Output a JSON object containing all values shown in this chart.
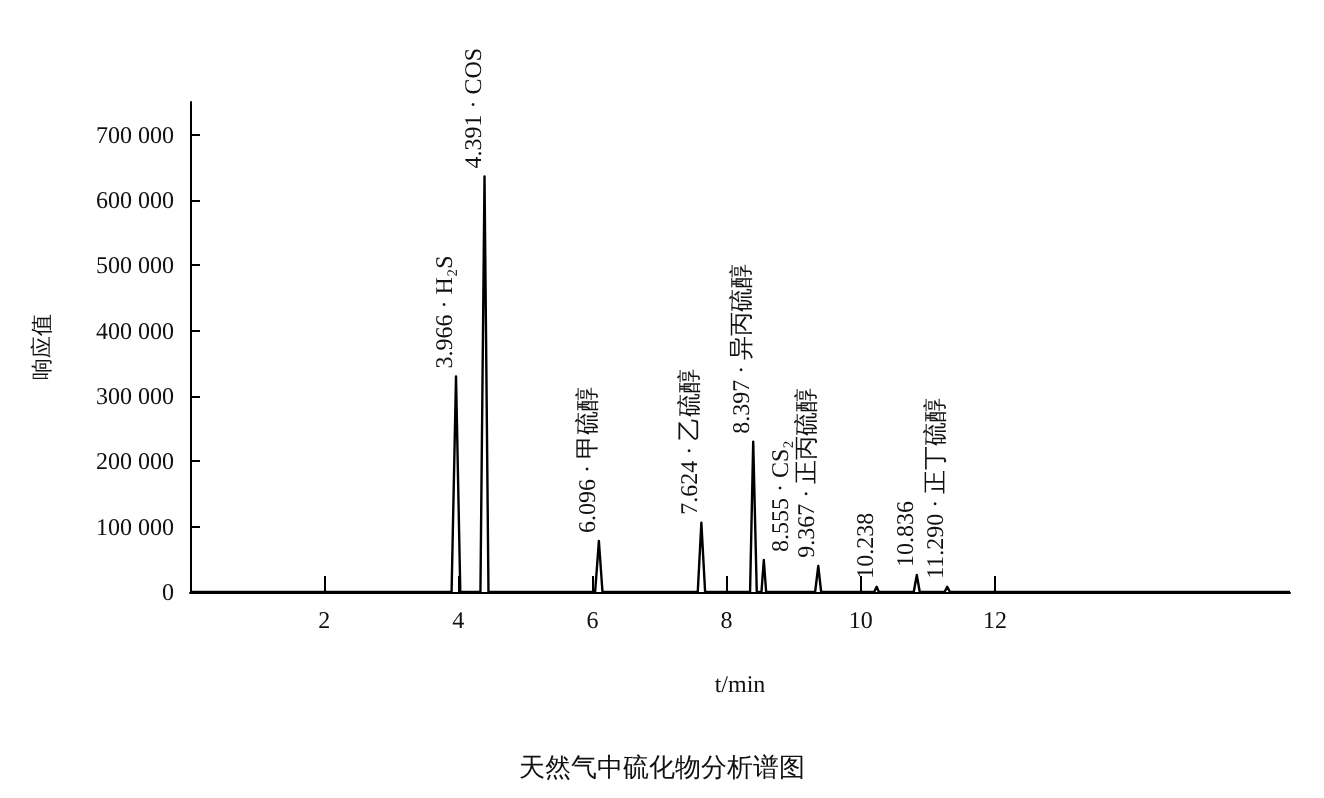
{
  "chart_data": {
    "type": "line",
    "title": "天然气中硫化物分析谱图",
    "xlabel": "t/min",
    "ylabel": "响应值",
    "x": [
      0,
      3.9,
      3.966,
      4.03,
      4.33,
      4.391,
      4.45,
      6.04,
      6.096,
      6.15,
      7.57,
      7.624,
      7.68,
      8.35,
      8.397,
      8.45,
      8.52,
      8.555,
      8.59,
      9.32,
      9.367,
      9.41,
      10.2,
      10.238,
      10.27,
      10.79,
      10.836,
      10.88,
      11.25,
      11.29,
      11.33,
      16.4
    ],
    "series": [
      {
        "color": "#000000",
        "values": [
          0,
          0,
          330000,
          0,
          0,
          636000,
          0,
          0,
          78000,
          0,
          0,
          106000,
          0,
          0,
          230000,
          0,
          0,
          49000,
          0,
          0,
          40000,
          0,
          0,
          8000,
          0,
          0,
          26000,
          0,
          0,
          8000,
          0,
          0
        ]
      }
    ],
    "xlim": [
      0,
      16.4
    ],
    "xticks": [
      2,
      4,
      6,
      8,
      10,
      12
    ],
    "ylim": [
      0,
      750000
    ],
    "yticks": [
      0,
      {
        "value": 100000,
        "label": "100 000"
      },
      {
        "value": 200000,
        "label": "200 000"
      },
      {
        "value": 300000,
        "label": "300 000"
      },
      {
        "value": 400000,
        "label": "400 000"
      },
      {
        "value": 500000,
        "label": "500 000"
      },
      {
        "value": 600000,
        "label": "600 000"
      },
      {
        "value": 700000,
        "label": "700 000"
      }
    ],
    "grid": false,
    "marker": "none",
    "line_style": "solid",
    "annotations": [
      {
        "text": "3.966 · H₂S",
        "x": 3.966,
        "y": 330000
      },
      {
        "text": "4.391 · COS",
        "x": 4.391,
        "y": 636000
      },
      {
        "text": "6.096 · 甲硫醇",
        "x": 6.096,
        "y": 78000
      },
      {
        "text": "7.624 · 乙硫醇",
        "x": 7.624,
        "y": 106000
      },
      {
        "text": "8.397 · 异丙硫醇",
        "x": 8.397,
        "y": 230000
      },
      {
        "text": "8.555 · CS₂",
        "x": 8.555,
        "y": 49000
      },
      {
        "text": "9.367 · 正丙硫醇",
        "x": 9.367,
        "y": 40000
      },
      {
        "text": "10.238",
        "x": 10.238,
        "y": 8000
      },
      {
        "text": "10.836",
        "x": 10.836,
        "y": 26000
      },
      {
        "text": "11.290 · 正丁硫醇",
        "x": 11.29,
        "y": 8000
      }
    ]
  }
}
